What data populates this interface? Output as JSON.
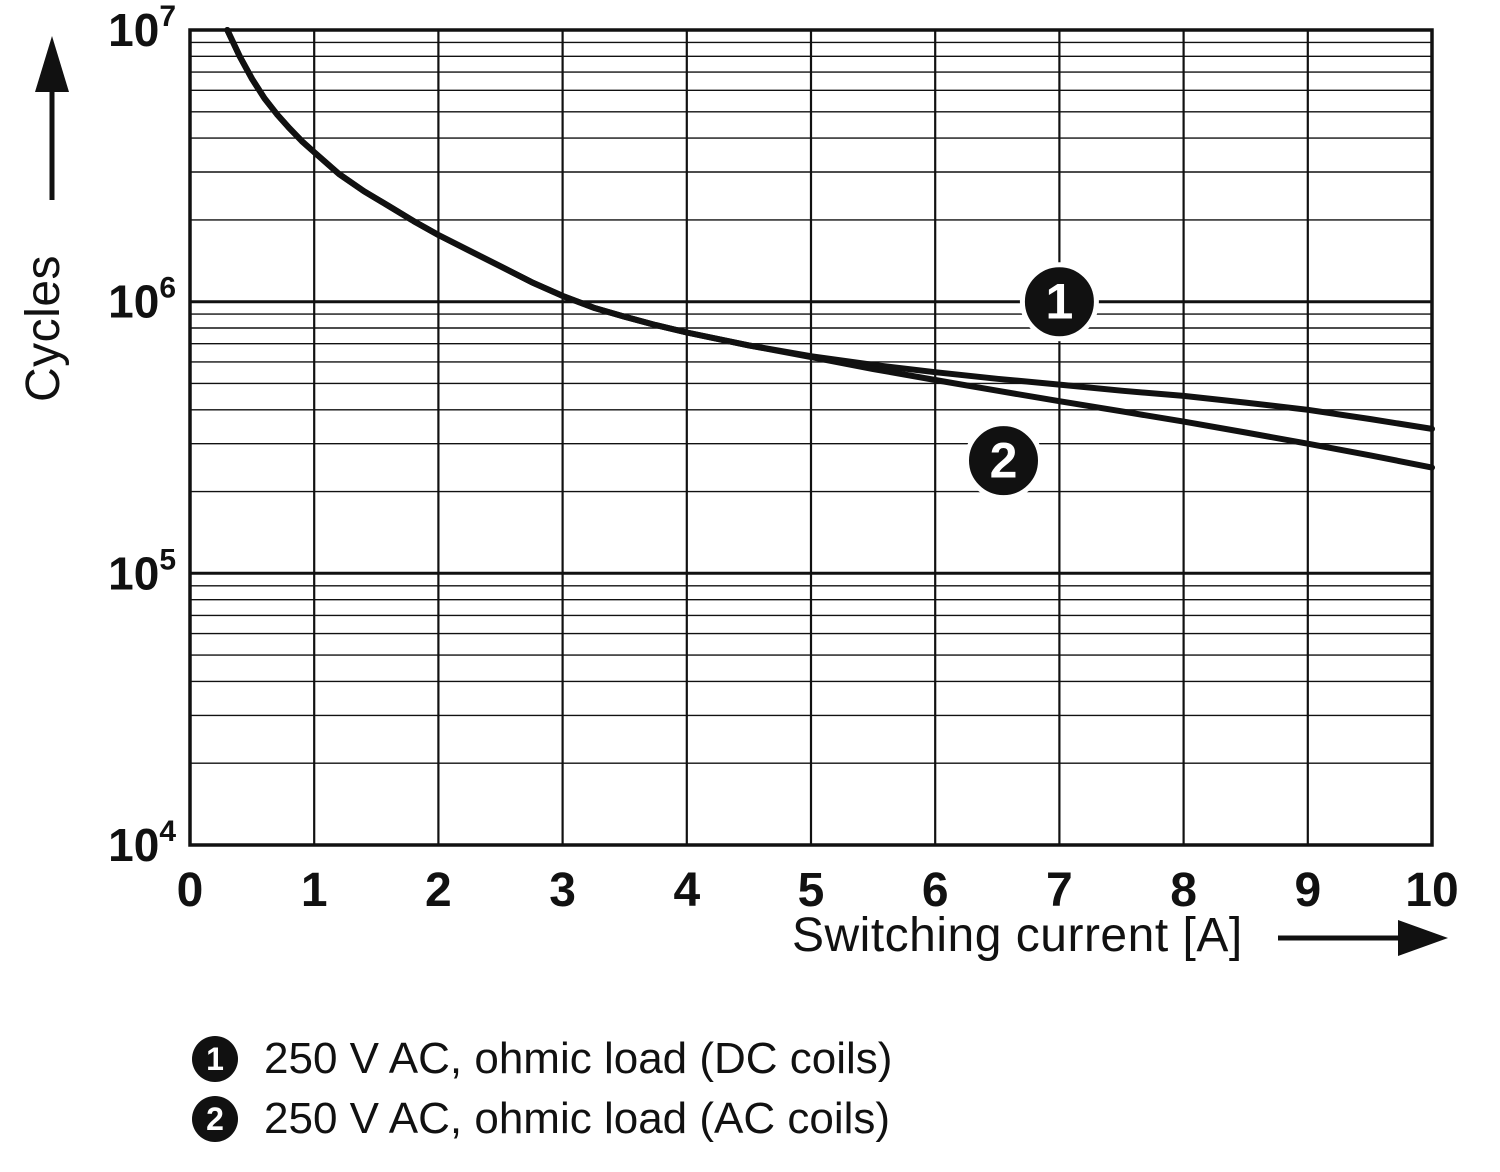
{
  "chart_data": {
    "type": "line",
    "title": "",
    "xlabel": "Switching current [A]",
    "ylabel": "Cycles",
    "x_axis": {
      "min": 0,
      "max": 10,
      "ticks": [
        0,
        1,
        2,
        3,
        4,
        5,
        6,
        7,
        8,
        9,
        10
      ]
    },
    "y_axis": {
      "scale": "log",
      "min": 10000,
      "max": 10000000,
      "tick_labels": [
        "10^4",
        "10^5",
        "10^6",
        "10^7"
      ],
      "minor_grid_multiples": [
        2,
        3,
        4,
        5,
        6,
        7,
        8,
        9
      ]
    },
    "grid": "on",
    "series": [
      {
        "id": "1",
        "name": "250 V AC, ohmic load (DC coils)",
        "color": "#111111",
        "points": [
          [
            0.3,
            10000000
          ],
          [
            0.4,
            8000000
          ],
          [
            0.5,
            6600000
          ],
          [
            0.6,
            5600000
          ],
          [
            0.7,
            4900000
          ],
          [
            0.8,
            4350000
          ],
          [
            0.9,
            3900000
          ],
          [
            1.0,
            3550000
          ],
          [
            1.2,
            2950000
          ],
          [
            1.4,
            2550000
          ],
          [
            1.6,
            2250000
          ],
          [
            1.8,
            1980000
          ],
          [
            2.0,
            1760000
          ],
          [
            2.25,
            1540000
          ],
          [
            2.5,
            1350000
          ],
          [
            2.75,
            1180000
          ],
          [
            3.0,
            1050000
          ],
          [
            3.25,
            950000
          ],
          [
            3.5,
            880000
          ],
          [
            3.75,
            820000
          ],
          [
            4.0,
            770000
          ],
          [
            4.5,
            690000
          ],
          [
            5.0,
            630000
          ],
          [
            5.5,
            585000
          ],
          [
            6.0,
            550000
          ],
          [
            6.5,
            520000
          ],
          [
            7.0,
            495000
          ],
          [
            7.5,
            470000
          ],
          [
            8.0,
            450000
          ],
          [
            8.5,
            425000
          ],
          [
            9.0,
            400000
          ],
          [
            9.5,
            370000
          ],
          [
            10.0,
            340000
          ]
        ]
      },
      {
        "id": "2",
        "name": "250 V AC, ohmic load (AC coils)",
        "color": "#111111",
        "points": [
          [
            0.3,
            10000000
          ],
          [
            0.4,
            8000000
          ],
          [
            0.5,
            6600000
          ],
          [
            0.6,
            5600000
          ],
          [
            0.7,
            4900000
          ],
          [
            0.8,
            4350000
          ],
          [
            0.9,
            3900000
          ],
          [
            1.0,
            3550000
          ],
          [
            1.2,
            2950000
          ],
          [
            1.4,
            2550000
          ],
          [
            1.6,
            2250000
          ],
          [
            1.8,
            1980000
          ],
          [
            2.0,
            1760000
          ],
          [
            2.25,
            1540000
          ],
          [
            2.5,
            1350000
          ],
          [
            2.75,
            1180000
          ],
          [
            3.0,
            1050000
          ],
          [
            3.25,
            950000
          ],
          [
            3.5,
            880000
          ],
          [
            3.75,
            820000
          ],
          [
            4.0,
            770000
          ],
          [
            4.5,
            690000
          ],
          [
            5.0,
            625000
          ],
          [
            5.5,
            565000
          ],
          [
            6.0,
            515000
          ],
          [
            6.5,
            470000
          ],
          [
            7.0,
            430000
          ],
          [
            7.5,
            395000
          ],
          [
            8.0,
            362000
          ],
          [
            8.5,
            330000
          ],
          [
            9.0,
            300000
          ],
          [
            9.5,
            272000
          ],
          [
            10.0,
            245000
          ]
        ]
      }
    ],
    "curve_labels": [
      {
        "text": "1",
        "x": 7.0,
        "y": 1000000
      },
      {
        "text": "2",
        "x": 6.55,
        "y": 260000
      }
    ]
  },
  "legend": {
    "items": [
      {
        "marker": "1",
        "label": "250 V AC, ohmic load (DC coils)"
      },
      {
        "marker": "2",
        "label": "250 V AC, ohmic load (AC coils)"
      }
    ]
  }
}
